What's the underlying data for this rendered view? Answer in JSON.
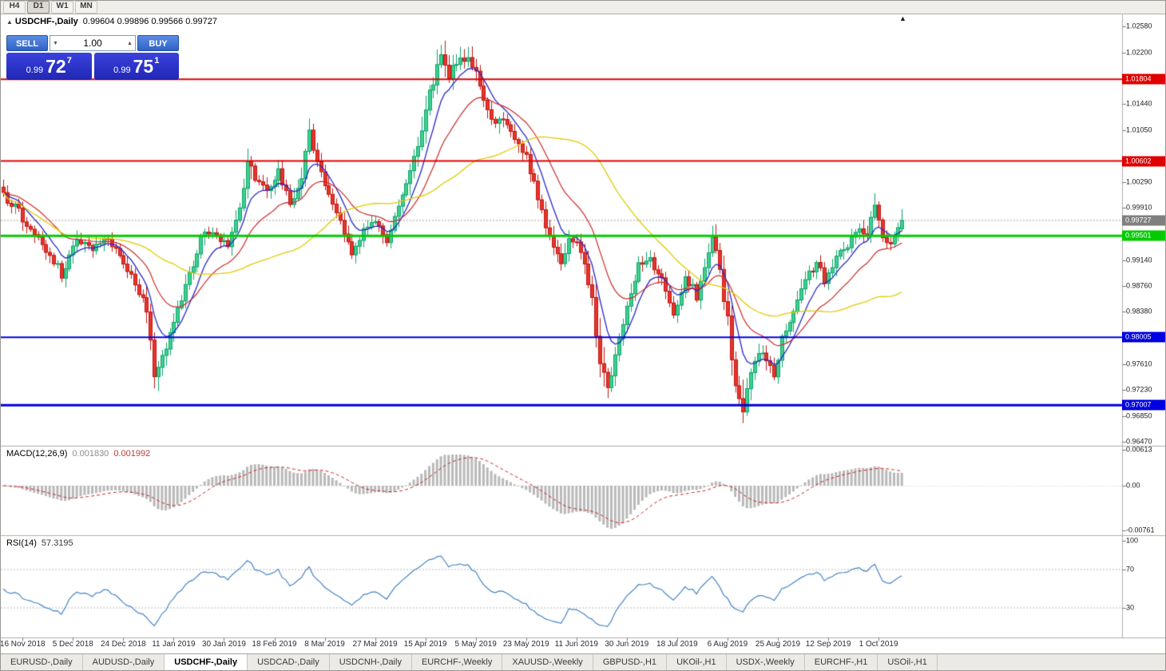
{
  "toolbar": {
    "timeframes": [
      "H4",
      "D1",
      "W1",
      "MN"
    ],
    "active": "D1"
  },
  "icons": {
    "collapse": "▲",
    "chart_shift": "▲",
    "volume_down": "▼",
    "volume_up": "▲"
  },
  "chart": {
    "symbol_title": "USDCHF-,Daily",
    "ohlc_text": "0.99604 0.99896 0.99566 0.99727",
    "y_ticks": [
      "1.02580",
      "1.02200",
      "1.01440",
      "1.01050",
      "1.00290",
      "0.99910",
      "0.99140",
      "0.98760",
      "0.98380",
      "0.97610",
      "0.97230",
      "0.96850",
      "0.96470"
    ],
    "levels": [
      {
        "text": "1.01804",
        "price": 1.01804,
        "color": "#e00000",
        "width": 2
      },
      {
        "text": "1.00602",
        "price": 1.00602,
        "color": "#e00000",
        "width": 2
      },
      {
        "text": "0.99501",
        "price": 0.99501,
        "color": "#00cc00",
        "width": 3
      },
      {
        "text": "0.98005",
        "price": 0.98005,
        "color": "#0000e0",
        "width": 2
      },
      {
        "text": "0.97007",
        "price": 0.97007,
        "color": "#0000e0",
        "width": 3
      }
    ],
    "price_badge": {
      "text": "0.99727",
      "price": 0.99727,
      "color": "#7f7f7f"
    }
  },
  "one_click": {
    "sell_label": "SELL",
    "buy_label": "BUY",
    "volume": "1.00",
    "sell_price": {
      "small": "0.99",
      "big": "72",
      "sup": "7"
    },
    "buy_price": {
      "small": "0.99",
      "big": "75",
      "sup": "1"
    }
  },
  "macd": {
    "label": "MACD(12,26,9)",
    "hist_value": "0.001830",
    "signal_value": "0.001992",
    "scale_labels": [
      "0.00613",
      "0.00",
      "-0.00761"
    ]
  },
  "rsi": {
    "label": "RSI(14)",
    "value": "57.3195",
    "scale_labels": [
      "100",
      "70",
      "30"
    ],
    "level_lines": [
      70,
      30
    ]
  },
  "tabs": {
    "items": [
      "EURUSD-,Daily",
      "AUDUSD-,Daily",
      "USDCHF-,Daily",
      "USDCAD-,Daily",
      "USDCNH-,Daily",
      "EURCHF-,Weekly",
      "XAUUSD-,Weekly",
      "GBPUSD-,H1",
      "UKOil-,H1",
      "USDX-,Weekly",
      "EURCHF-,H1",
      "USOil-,H1"
    ],
    "active_index": 2
  },
  "chart_data": {
    "type": "candlestick",
    "symbol": "USDCHF",
    "timeframe": "Daily",
    "price_range_visible": [
      0.9641,
      1.0276
    ],
    "last_candle": {
      "open": 0.99604,
      "high": 0.99896,
      "low": 0.99566,
      "close": 0.99727
    },
    "horizontal_lines": [
      1.01804,
      1.00602,
      0.99501,
      0.98005,
      0.97007
    ],
    "date_labels": [
      "16 Nov 2018",
      "5 Dec 2018",
      "24 Dec 2018",
      "11 Jan 2019",
      "30 Jan 2019",
      "18 Feb 2019",
      "8 Mar 2019",
      "27 Mar 2019",
      "15 Apr 2019",
      "5 May 2019",
      "23 May 2019",
      "11 Jun 2019",
      "30 Jun 2019",
      "18 Jul 2019",
      "6 Aug 2019",
      "25 Aug 2019",
      "12 Sep 2019",
      "1 Oct 2019"
    ],
    "keypoints": [
      [
        0,
        1.001,
        1.0
      ],
      [
        4,
        0.9985,
        1.0
      ],
      [
        8,
        0.9948,
        1.0
      ],
      [
        12,
        0.9922,
        1.0
      ],
      [
        15,
        0.9895,
        1.1
      ],
      [
        19,
        0.9945,
        1.0
      ],
      [
        23,
        0.9932,
        0.8
      ],
      [
        27,
        0.9948,
        0.8
      ],
      [
        31,
        0.9912,
        0.9
      ],
      [
        34,
        0.9882,
        1.0
      ],
      [
        37,
        0.9838,
        1.4
      ],
      [
        39,
        0.9748,
        1.8
      ],
      [
        41,
        0.9772,
        1.2
      ],
      [
        44,
        0.9828,
        1.0
      ],
      [
        48,
        0.9892,
        1.0
      ],
      [
        52,
        0.9962,
        1.1
      ],
      [
        55,
        0.995,
        0.8
      ],
      [
        58,
        0.9936,
        0.8
      ],
      [
        61,
        0.9992,
        1.1
      ],
      [
        63,
        1.0058,
        1.6
      ],
      [
        65,
        1.0032,
        1.0
      ],
      [
        68,
        1.0018,
        0.8
      ],
      [
        71,
        1.0046,
        0.9
      ],
      [
        74,
        0.9996,
        1.0
      ],
      [
        77,
        1.0042,
        1.2
      ],
      [
        79,
        1.0096,
        1.6
      ],
      [
        81,
        1.0062,
        1.1
      ],
      [
        84,
        1.0012,
        1.0
      ],
      [
        87,
        0.9976,
        1.0
      ],
      [
        90,
        0.9916,
        1.1
      ],
      [
        93,
        0.9958,
        1.0
      ],
      [
        96,
        0.9976,
        0.9
      ],
      [
        99,
        0.9946,
        1.0
      ],
      [
        102,
        0.9988,
        1.1
      ],
      [
        105,
        1.0042,
        1.2
      ],
      [
        108,
        1.0112,
        1.4
      ],
      [
        111,
        1.0182,
        1.5
      ],
      [
        113,
        1.0226,
        1.6
      ],
      [
        115,
        1.0186,
        1.3
      ],
      [
        118,
        1.0206,
        1.2
      ],
      [
        120,
        1.0214,
        1.2
      ],
      [
        123,
        1.0172,
        1.2
      ],
      [
        126,
        1.0116,
        1.2
      ],
      [
        129,
        1.0126,
        1.0
      ],
      [
        132,
        1.0096,
        1.0
      ],
      [
        135,
        1.0066,
        1.0
      ],
      [
        138,
        1.0002,
        1.2
      ],
      [
        141,
        0.9942,
        1.3
      ],
      [
        144,
        0.9906,
        1.2
      ],
      [
        146,
        0.9942,
        1.0
      ],
      [
        149,
        0.993,
        1.0
      ],
      [
        152,
        0.9852,
        1.5
      ],
      [
        154,
        0.9762,
        1.8
      ],
      [
        156,
        0.9726,
        1.5
      ],
      [
        158,
        0.9772,
        1.2
      ],
      [
        161,
        0.9852,
        1.1
      ],
      [
        164,
        0.9906,
        1.0
      ],
      [
        167,
        0.9918,
        0.9
      ],
      [
        170,
        0.9882,
        1.0
      ],
      [
        173,
        0.9836,
        1.1
      ],
      [
        176,
        0.9892,
        1.0
      ],
      [
        179,
        0.9862,
        1.0
      ],
      [
        181,
        0.9902,
        1.1
      ],
      [
        183,
        0.9956,
        1.3
      ],
      [
        185,
        0.9902,
        1.3
      ],
      [
        187,
        0.9822,
        1.5
      ],
      [
        189,
        0.9732,
        1.8
      ],
      [
        191,
        0.9698,
        1.9
      ],
      [
        193,
        0.9746,
        1.2
      ],
      [
        195,
        0.9776,
        1.1
      ],
      [
        197,
        0.9772,
        1.0
      ],
      [
        199,
        0.9746,
        1.1
      ],
      [
        201,
        0.9802,
        1.1
      ],
      [
        204,
        0.9842,
        1.0
      ],
      [
        207,
        0.9886,
        1.0
      ],
      [
        210,
        0.9912,
        1.0
      ],
      [
        212,
        0.9882,
        1.0
      ],
      [
        215,
        0.9922,
        0.9
      ],
      [
        218,
        0.9936,
        0.9
      ],
      [
        221,
        0.9956,
        0.9
      ],
      [
        223,
        0.9946,
        0.9
      ],
      [
        225,
        0.9996,
        1.2
      ],
      [
        227,
        0.9952,
        1.0
      ],
      [
        229,
        0.9938,
        0.9
      ],
      [
        231,
        0.9958,
        0.8
      ],
      [
        232,
        0.99727,
        0.8
      ]
    ],
    "indicators": {
      "macd": {
        "params": [
          12,
          26,
          9
        ],
        "current_hist": 0.00183,
        "current_signal": 0.001992,
        "scale_range": [
          -0.00761,
          0.00613
        ]
      },
      "rsi": {
        "period": 14,
        "current": 57.3195,
        "levels": [
          70,
          30
        ]
      },
      "moving_averages": [
        {
          "period": 8,
          "color": "#2626cc"
        },
        {
          "period": 20,
          "color": "#cc2a2a"
        },
        {
          "period": 45,
          "color": "#e0ca00"
        }
      ]
    },
    "colors": {
      "bull_fill": "#3fcf8f",
      "bull_edge": "#0ca36b",
      "bear_fill": "#e8352c",
      "bear_edge": "#bf1612",
      "macd_hist": "#b8b8b8",
      "macd_signal": "#cc2222",
      "rsi_line": "#4584c6",
      "current_price_line": "#a0a0a0"
    }
  }
}
